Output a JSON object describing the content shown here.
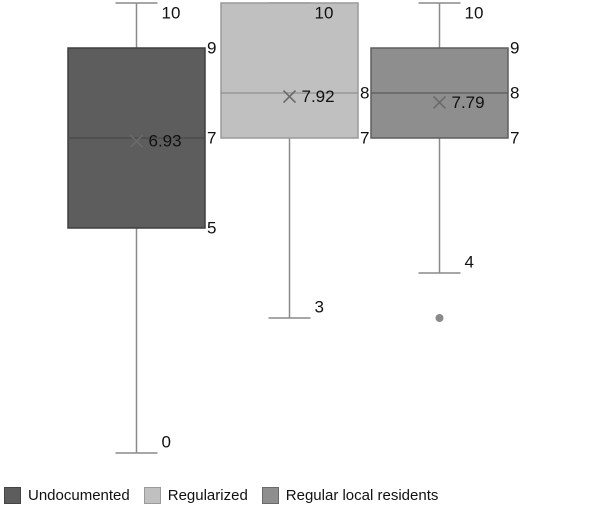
{
  "chart_data": {
    "type": "boxplot",
    "title": "",
    "xlabel": "",
    "ylabel": "",
    "ylim": [
      0,
      10
    ],
    "grid": false,
    "legend_position": "bottom",
    "series": [
      {
        "name": "Undocumented",
        "color": "#5d5d5d",
        "whisker_low": 0,
        "q1": 5,
        "median": 7,
        "q3": 9,
        "whisker_high": 10,
        "mean": 6.93,
        "mean_label": "6.93",
        "labels": {
          "whisker_high": "10",
          "q3": "9",
          "median": "7",
          "q1": "5",
          "whisker_low": "0"
        },
        "outliers": []
      },
      {
        "name": "Regularized",
        "color": "#c0c0c0",
        "whisker_low": 3,
        "q1": 7,
        "median": 8,
        "q3": 10,
        "whisker_high": 10,
        "mean": 7.92,
        "mean_label": "7.92",
        "labels": {
          "whisker_high": "10",
          "median": "8",
          "q1": "7",
          "whisker_low": "3"
        },
        "outliers": []
      },
      {
        "name": "Regular local residents",
        "color": "#8e8e8e",
        "whisker_low": 4,
        "q1": 7,
        "median": 8,
        "q3": 9,
        "whisker_high": 10,
        "mean": 7.79,
        "mean_label": "7.79",
        "labels": {
          "whisker_high": "10",
          "q3": "9",
          "median": "8",
          "q1": "7",
          "whisker_low": "4"
        },
        "outliers": [
          3
        ]
      }
    ]
  }
}
